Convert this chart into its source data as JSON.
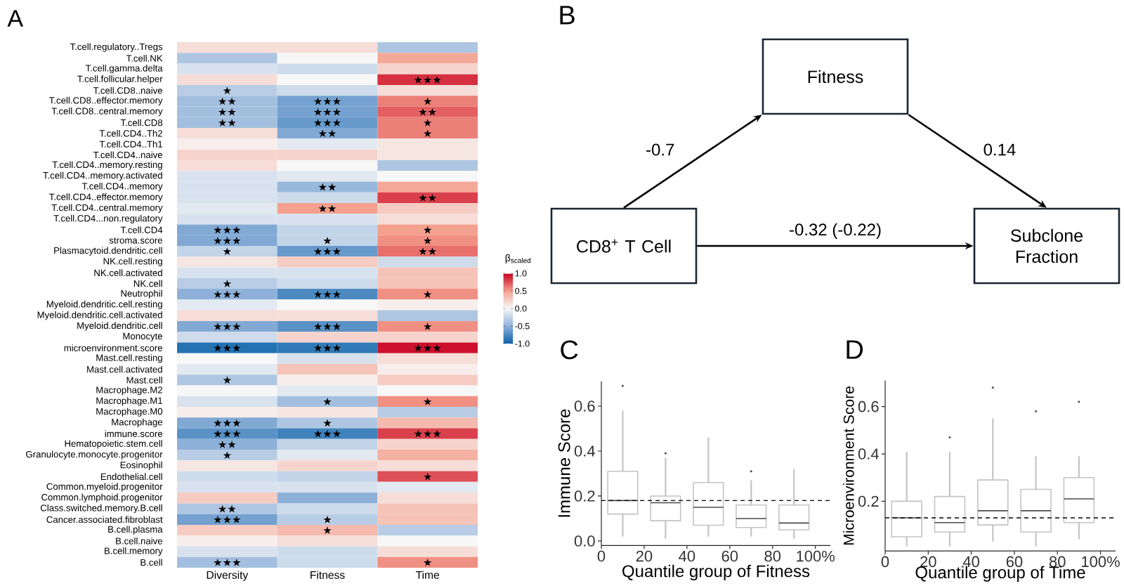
{
  "chart_data": [
    {
      "type": "heatmap",
      "title": "A",
      "categories": [
        "Diversity",
        "Fitness",
        "Time"
      ],
      "y_categories": [
        "T.cell.regulatory..Tregs",
        "T.cell.NK",
        "T.cell.gamma.delta",
        "T.cell.follicular.helper",
        "T.cell.CD8..naive",
        "T.cell.CD8..effector.memory",
        "T.cell.CD8..central.memory",
        "T.cell.CD8",
        "T.cell.CD4..Th2",
        "T.cell.CD4..Th1",
        "T.cell.CD4..naive",
        "T.cell.CD4..memory.resting",
        "T.cell.CD4..memory.activated",
        "T.cell.CD4..memory",
        "T.cell.CD4..effector.memory",
        "T.cell.CD4..central.memory",
        "T.cell.CD4...non.regulatory",
        "T.cell.CD4",
        "stroma.score",
        "Plasmacytoid.dendritic.cell",
        "NK.cell.resting",
        "NK.cell.activated",
        "NK.cell",
        "Neutrophil",
        "Myeloid.dendritic.cell.resting",
        "Myeloid.dendritic.cell.activated",
        "Myeloid.dendritic.cell",
        "Monocyte",
        "microenvironment.score",
        "Mast.cell.resting",
        "Mast.cell.activated",
        "Mast.cell",
        "Macrophage.M2",
        "Macrophage.M1",
        "Macrophage.M0",
        "Macrophage",
        "immune.score",
        "Hematopoietic.stem.cell",
        "Granulocyte.monocyte.progenitor",
        "Eosinophil",
        "Endothelial.cell",
        "Common.myeloid.progenitor",
        "Common.lymphoid.progenitor",
        "Class.switched.memory.B.cell",
        "Cancer.associated.fibroblast",
        "B.cell.plasma",
        "B.cell.naive",
        "B.cell.memory",
        "B.cell"
      ],
      "cells": [
        [
          0.15,
          0.15,
          -0.35
        ],
        [
          -0.35,
          0,
          0.45
        ],
        [
          -0.15,
          -0.2,
          0.2
        ],
        [
          0.15,
          0,
          0.85
        ],
        [
          -0.3,
          -0.2,
          0.15
        ],
        [
          -0.4,
          -0.6,
          0.6
        ],
        [
          -0.4,
          -0.6,
          0.7
        ],
        [
          -0.4,
          -0.65,
          0.6
        ],
        [
          0.15,
          -0.55,
          0.6
        ],
        [
          0.05,
          -0.1,
          0.1
        ],
        [
          0.2,
          0.2,
          0.1
        ],
        [
          0.15,
          0,
          -0.35
        ],
        [
          -0.15,
          -0.1,
          0
        ],
        [
          -0.15,
          -0.45,
          0.45
        ],
        [
          -0.15,
          -0.2,
          0.8
        ],
        [
          -0.1,
          0.5,
          0.25
        ],
        [
          -0.15,
          -0.15,
          0.15
        ],
        [
          -0.55,
          -0.25,
          0.5
        ],
        [
          -0.55,
          -0.25,
          0.55
        ],
        [
          -0.25,
          -0.65,
          0.65
        ],
        [
          0.1,
          0.25,
          -0.2
        ],
        [
          -0.15,
          -0.15,
          0.3
        ],
        [
          -0.3,
          -0.2,
          0.3
        ],
        [
          -0.5,
          -0.75,
          0.55
        ],
        [
          -0.1,
          0,
          0.05
        ],
        [
          0.15,
          0.15,
          -0.35
        ],
        [
          -0.55,
          -0.7,
          0.55
        ],
        [
          -0.2,
          0.2,
          0.2
        ],
        [
          -0.9,
          -0.85,
          0.95
        ],
        [
          0,
          -0.15,
          0.15
        ],
        [
          -0.1,
          0.3,
          0.05
        ],
        [
          -0.35,
          0.05,
          0.25
        ],
        [
          0,
          -0.1,
          0
        ],
        [
          -0.15,
          -0.4,
          0.55
        ],
        [
          0.05,
          0.1,
          -0.3
        ],
        [
          -0.55,
          -0.35,
          0.35
        ],
        [
          -0.7,
          -0.8,
          0.8
        ],
        [
          -0.5,
          -0.25,
          0.2
        ],
        [
          -0.3,
          -0.1,
          0.4
        ],
        [
          0.1,
          0.2,
          0.15
        ],
        [
          -0.2,
          -0.25,
          0.75
        ],
        [
          -0.15,
          -0.15,
          -0.1
        ],
        [
          0.25,
          -0.5,
          0.15
        ],
        [
          -0.35,
          -0.2,
          0.3
        ],
        [
          -0.6,
          -0.3,
          0.3
        ],
        [
          0.25,
          0.35,
          -0.3
        ],
        [
          0.05,
          0.15,
          0
        ],
        [
          -0.15,
          -0.2,
          0.15
        ],
        [
          -0.4,
          -0.2,
          0.55
        ]
      ],
      "cell_labels": [
        [
          null,
          null,
          null
        ],
        [
          null,
          null,
          null
        ],
        [
          null,
          null,
          null
        ],
        [
          null,
          null,
          "★★★"
        ],
        [
          "★",
          null,
          null
        ],
        [
          "★★",
          "★★★",
          "★"
        ],
        [
          "★★",
          "★★★",
          "★★"
        ],
        [
          "★★",
          "★★★",
          "★"
        ],
        [
          null,
          "★★",
          "★"
        ],
        [
          null,
          null,
          null
        ],
        [
          null,
          null,
          null
        ],
        [
          null,
          null,
          null
        ],
        [
          null,
          null,
          null
        ],
        [
          null,
          "★★",
          null
        ],
        [
          null,
          null,
          "★★"
        ],
        [
          null,
          "★★",
          null
        ],
        [
          null,
          null,
          null
        ],
        [
          "★★★",
          null,
          "★"
        ],
        [
          "★★★",
          "★",
          "★"
        ],
        [
          "★",
          "★★★",
          "★★"
        ],
        [
          null,
          null,
          null
        ],
        [
          null,
          null,
          null
        ],
        [
          "★",
          null,
          null
        ],
        [
          "★★★",
          "★★★",
          "★"
        ],
        [
          null,
          null,
          null
        ],
        [
          null,
          null,
          null
        ],
        [
          "★★★",
          "★★★",
          "★"
        ],
        [
          null,
          null,
          null
        ],
        [
          "★★★",
          "★★★",
          "★★★"
        ],
        [
          null,
          null,
          null
        ],
        [
          null,
          null,
          null
        ],
        [
          "★",
          null,
          null
        ],
        [
          null,
          null,
          null
        ],
        [
          null,
          "★",
          "★"
        ],
        [
          null,
          null,
          null
        ],
        [
          "★★★",
          "★",
          null
        ],
        [
          "★★★",
          "★★★",
          "★★★"
        ],
        [
          "★★",
          null,
          null
        ],
        [
          "★",
          null,
          null
        ],
        [
          null,
          null,
          null
        ],
        [
          null,
          null,
          "★"
        ],
        [
          null,
          null,
          null
        ],
        [
          null,
          null,
          null
        ],
        [
          "★★",
          null,
          null
        ],
        [
          "★★★",
          "★",
          null
        ],
        [
          null,
          "★",
          null
        ],
        [
          null,
          null,
          null
        ],
        [
          null,
          null,
          null
        ],
        [
          "★★★",
          null,
          "★"
        ]
      ],
      "clim": [
        -1,
        1
      ],
      "cticks": [
        {
          "value": -1,
          "label": "-1.0"
        },
        {
          "value": -0.5,
          "label": "-0.5"
        },
        {
          "value": 0,
          "label": "0.0"
        },
        {
          "value": 0.5,
          "label": "0.5"
        },
        {
          "value": 1,
          "label": "1.0"
        }
      ],
      "clabel": "β$_{scaled}$"
    },
    {
      "type": "other",
      "title": "B",
      "categories": [
        "CD8$^{+}$ T Cell",
        "Fitness",
        "Subclone Fraction"
      ],
      "annotations": [
        "-0.7",
        "0.14",
        "-0.32 (-0.22)"
      ],
      "color": "#1b2631"
    },
    {
      "type": "box",
      "title": "C",
      "x": [
        10,
        30,
        50,
        70,
        90
      ],
      "boxes": [
        {
          "low": 0.02,
          "q1": 0.12,
          "median": 0.18,
          "q3": 0.31,
          "high": 0.58,
          "outliers": [
            0.69
          ]
        },
        {
          "low": 0.01,
          "q1": 0.09,
          "median": 0.17,
          "q3": 0.2,
          "high": 0.37,
          "outliers": [
            0.39
          ]
        },
        {
          "low": 0.02,
          "q1": 0.07,
          "median": 0.15,
          "q3": 0.26,
          "high": 0.46
        },
        {
          "low": 0.02,
          "q1": 0.06,
          "median": 0.1,
          "q3": 0.16,
          "high": 0.27,
          "outliers": [
            0.31
          ]
        },
        {
          "low": 0.01,
          "q1": 0.05,
          "median": 0.08,
          "q3": 0.16,
          "high": 0.32
        }
      ],
      "color": "#c4c4c4",
      "xlim": [
        0,
        107
      ],
      "ylim": [
        -0.02,
        0.71
      ],
      "xticks": [
        0,
        20,
        40,
        60,
        80,
        {
          "value": 100,
          "label": "100%"
        }
      ],
      "yticks": [
        {
          "value": 0,
          "label": "0.0"
        },
        0.2,
        0.4,
        0.6
      ],
      "xlabel": "Quantile group of Fitness",
      "ylabel": "Immune Score",
      "ref_lines": [
        {
          "axis": "y",
          "value": 0.18,
          "line_style": "dashed",
          "color": "#000000"
        }
      ]
    },
    {
      "type": "box",
      "title": "D",
      "x": [
        10,
        30,
        50,
        70,
        90
      ],
      "boxes": [
        {
          "low": 0.01,
          "q1": 0.05,
          "median": 0.13,
          "q3": 0.2,
          "high": 0.41
        },
        {
          "low": 0.01,
          "q1": 0.07,
          "median": 0.11,
          "q3": 0.22,
          "high": 0.41,
          "outliers": [
            0.47
          ]
        },
        {
          "low": 0.03,
          "q1": 0.1,
          "median": 0.16,
          "q3": 0.29,
          "high": 0.55,
          "outliers": [
            0.68
          ]
        },
        {
          "low": 0.01,
          "q1": 0.07,
          "median": 0.16,
          "q3": 0.25,
          "high": 0.39,
          "outliers": [
            0.58
          ]
        },
        {
          "low": 0.04,
          "q1": 0.11,
          "median": 0.21,
          "q3": 0.3,
          "high": 0.39,
          "outliers": [
            0.62
          ]
        }
      ],
      "color": "#c4c4c4",
      "xlim": [
        0,
        107
      ],
      "ylim": [
        -0.01,
        0.71
      ],
      "xticks": [
        0,
        20,
        40,
        60,
        80,
        {
          "value": 100,
          "label": "100%"
        }
      ],
      "yticks": [
        0.2,
        0.4,
        0.6
      ],
      "xlabel": "Quantile group of Time",
      "ylabel": "Microenvironment Score",
      "ref_lines": [
        {
          "axis": "y",
          "value": 0.13,
          "line_style": "dashed",
          "color": "#000000"
        }
      ]
    }
  ]
}
